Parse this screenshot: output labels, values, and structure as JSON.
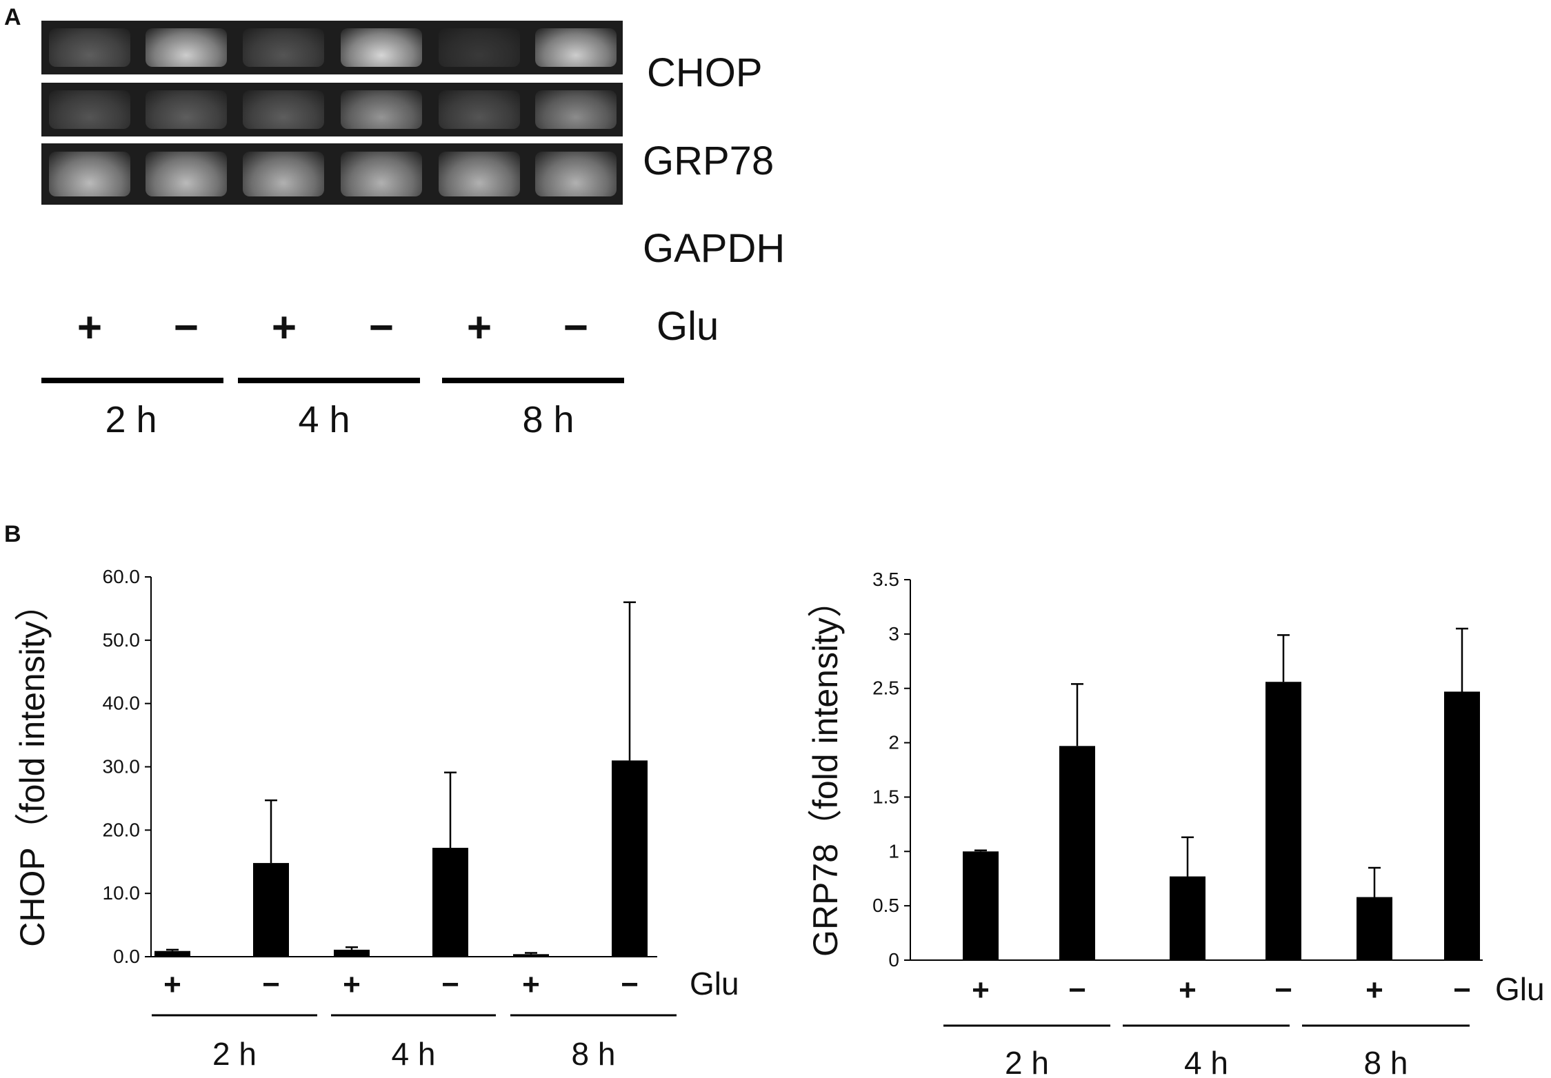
{
  "panel_a": {
    "letter": "A",
    "rows": [
      {
        "label": "CHOP",
        "band_intensity": [
          0.35,
          0.95,
          0.3,
          1.0,
          0.15,
          0.95
        ]
      },
      {
        "label": "GRP78",
        "band_intensity": [
          0.3,
          0.35,
          0.35,
          0.65,
          0.3,
          0.6
        ]
      },
      {
        "label": "GAPDH",
        "band_intensity": [
          0.85,
          0.85,
          0.8,
          0.8,
          0.8,
          0.8
        ]
      }
    ],
    "signs": [
      "+",
      "−",
      "+",
      "−",
      "+",
      "−"
    ],
    "glu_label": "Glu",
    "times": [
      "2 h",
      "4 h",
      "8 h"
    ],
    "band_color": "#d6d6d6",
    "gel_background": "#1d1d1d"
  },
  "panel_b": {
    "letter": "B"
  },
  "chart_data": [
    {
      "type": "bar",
      "ylabel": "CHOP（fold intensity）",
      "ylim": [
        0,
        60
      ],
      "yticks": [
        "0.0",
        "10.0",
        "20.0",
        "30.0",
        "40.0",
        "50.0",
        "60.0"
      ],
      "categories": [
        "+",
        "−",
        "+",
        "−",
        "+",
        "−"
      ],
      "values": [
        0.9,
        14.8,
        1.1,
        17.2,
        0.4,
        31.0
      ],
      "errors": [
        0.2,
        9.9,
        0.4,
        11.9,
        0.2,
        25.0
      ],
      "glu_label": "Glu",
      "groups": [
        "2 h",
        "4 h",
        "8 h"
      ],
      "bar_color": "#000000"
    },
    {
      "type": "bar",
      "ylabel": "GRP78（fold intensity）",
      "ylim": [
        0,
        3.5
      ],
      "yticks": [
        "0",
        "0.5",
        "1",
        "1.5",
        "2",
        "2.5",
        "3",
        "3.5"
      ],
      "categories": [
        "+",
        "−",
        "+",
        "−",
        "+",
        "−"
      ],
      "values": [
        1.0,
        1.97,
        0.77,
        2.56,
        0.58,
        2.47
      ],
      "errors": [
        0.01,
        0.57,
        0.36,
        0.43,
        0.27,
        0.58
      ],
      "glu_label": "Glu",
      "groups": [
        "2 h",
        "4 h",
        "8 h"
      ],
      "bar_color": "#000000"
    }
  ]
}
